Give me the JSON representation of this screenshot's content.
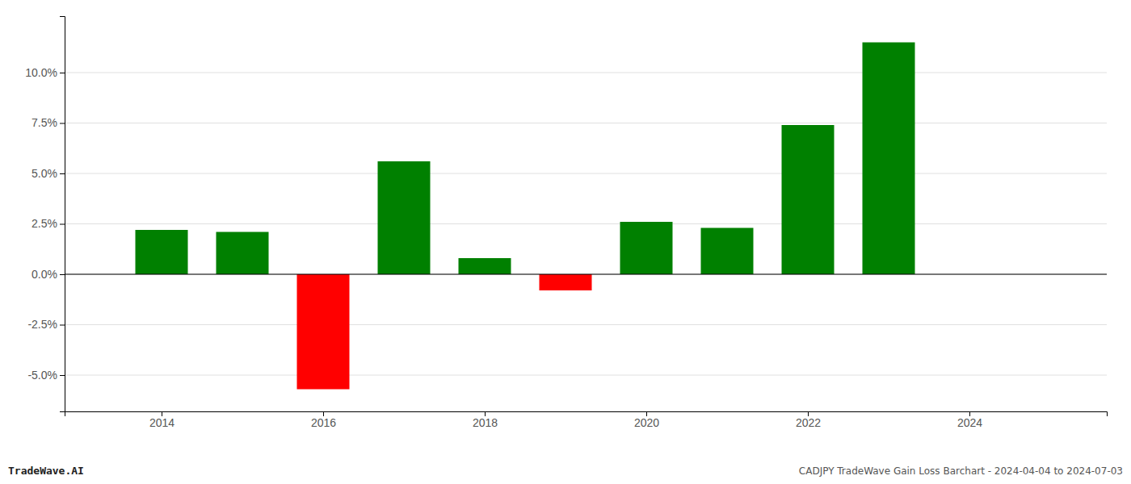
{
  "chart_data": {
    "type": "bar",
    "title": "CADJPY TradeWave Gain Loss Barchart - 2024-04-04 to 2024-07-03",
    "annotations": [
      "TradeWave.AI"
    ],
    "x": [
      2014,
      2015,
      2016,
      2017,
      2018,
      2019,
      2020,
      2021,
      2022,
      2023
    ],
    "values": [
      0.022,
      0.021,
      -0.057,
      0.056,
      0.008,
      -0.008,
      0.026,
      0.023,
      0.074,
      0.115
    ],
    "colors": [
      "#008000",
      "#008000",
      "#ff0000",
      "#008000",
      "#008000",
      "#ff0000",
      "#008000",
      "#008000",
      "#008000",
      "#008000"
    ],
    "xlim": [
      2012.8,
      2025.7
    ],
    "xticks": [
      2014,
      2016,
      2018,
      2020,
      2022,
      2024
    ],
    "ylim": [
      -0.068,
      0.128
    ],
    "yticks": [
      {
        "value": -0.05,
        "label": "-5.0%"
      },
      {
        "value": -0.025,
        "label": "-2.5%"
      },
      {
        "value": 0.0,
        "label": "0.0%"
      },
      {
        "value": 0.025,
        "label": "2.5%"
      },
      {
        "value": 0.05,
        "label": "5.0%"
      },
      {
        "value": 0.075,
        "label": "7.5%"
      },
      {
        "value": 0.1,
        "label": "10.0%"
      }
    ],
    "grid": true
  }
}
